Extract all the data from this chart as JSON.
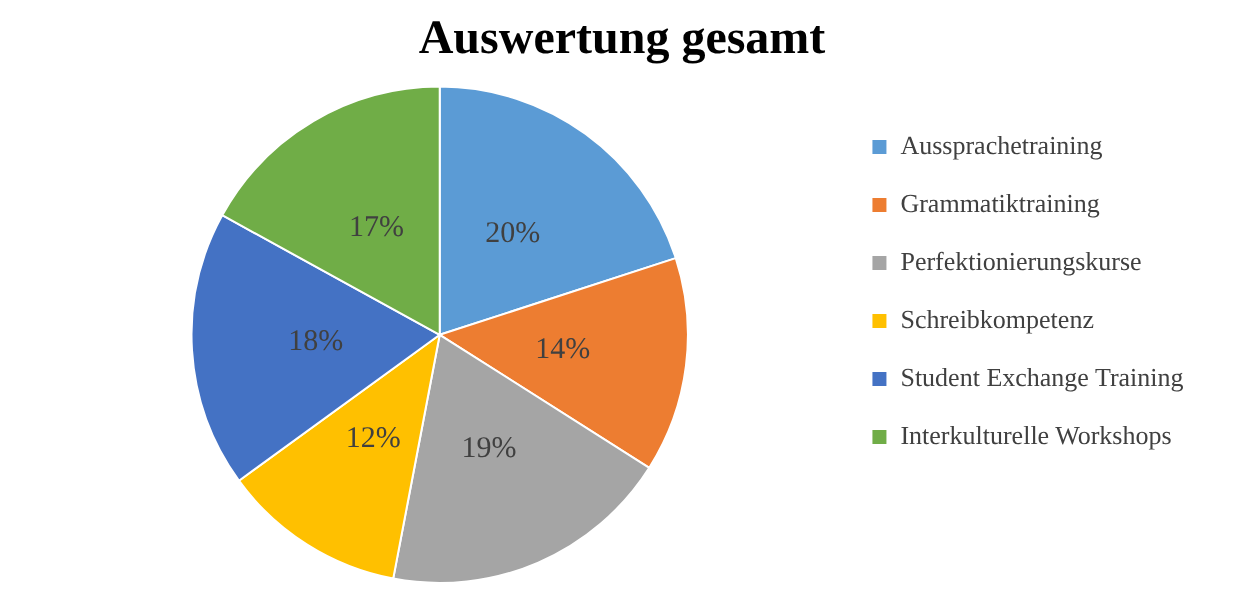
{
  "chart_data": {
    "type": "pie",
    "title": "Auswertung gesamt",
    "categories": [
      "Aussprachetraining",
      "Grammatiktraining",
      "Perfektionierungskurse",
      "Schreibkompetenz",
      "Student Exchange Training",
      "Interkulturelle Workshops"
    ],
    "values": [
      20,
      14,
      19,
      12,
      18,
      17
    ],
    "colors": [
      "#5b9bd5",
      "#ed7d31",
      "#a5a5a5",
      "#ffc000",
      "#4472c4",
      "#70ad47"
    ],
    "value_labels": [
      "20%",
      "14%",
      "19%",
      "12%",
      "18%",
      "17%"
    ],
    "legend": "right"
  }
}
